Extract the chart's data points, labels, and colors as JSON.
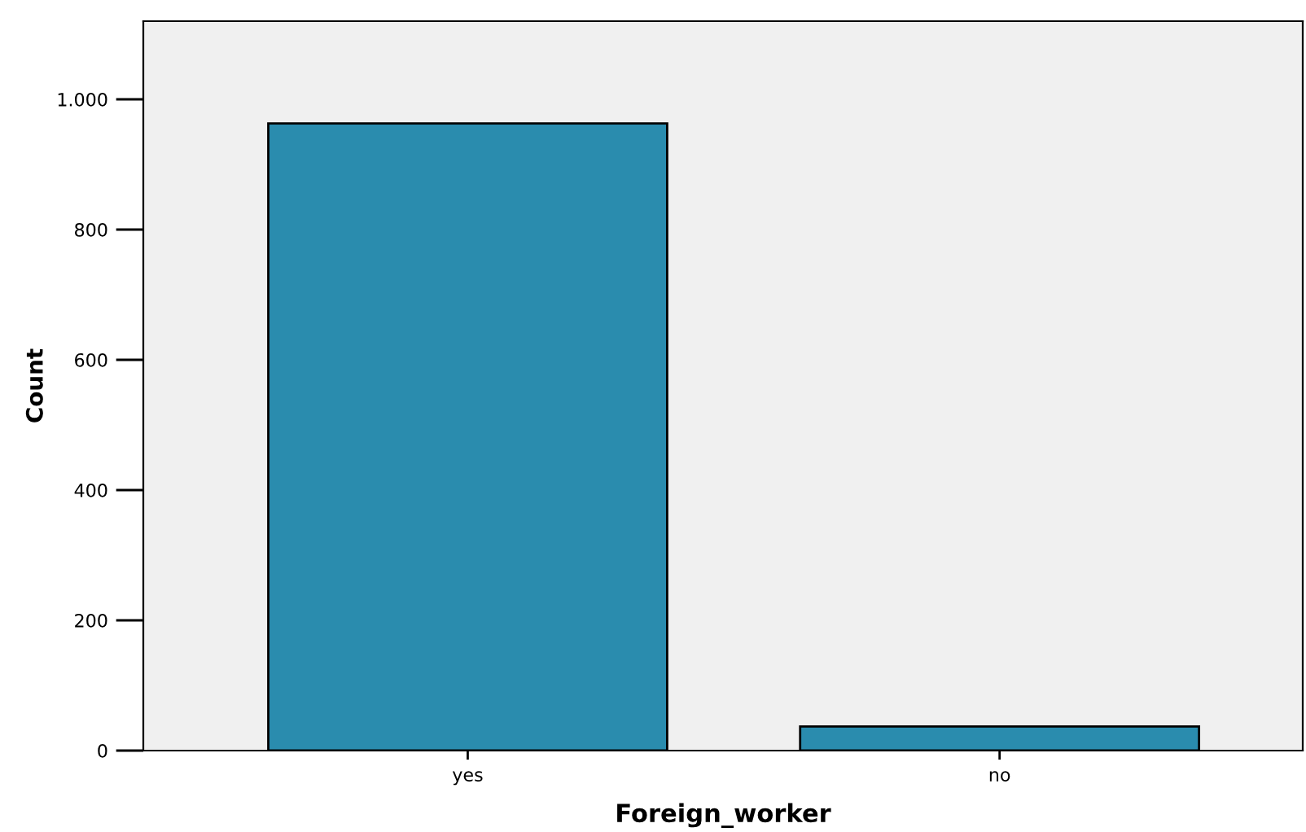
{
  "chart_data": {
    "type": "bar",
    "xlabel": "Foreign_worker",
    "ylabel": "Count",
    "categories": [
      "yes",
      "no"
    ],
    "values": [
      963,
      37
    ],
    "color": "#2a8cae",
    "ylim": [
      0,
      1120
    ],
    "yticks": [
      0,
      200,
      400,
      600,
      800,
      {
        "value": 1000,
        "label": "1.000"
      }
    ],
    "grid": false,
    "legend": false
  }
}
